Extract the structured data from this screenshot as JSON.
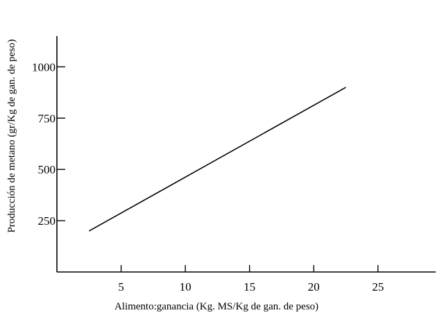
{
  "chart_data": {
    "type": "line",
    "title": "",
    "xlabel": "Alimento:ganancia (Kg. MS/Kg de gan. de peso)",
    "ylabel": "Producción de metano (gr/Kg de gan. de peso)",
    "xlim": [
      0,
      29.5
    ],
    "ylim": [
      0,
      1150
    ],
    "x_ticks": [
      5,
      10,
      15,
      20,
      25
    ],
    "x_tick_labels": [
      "5",
      "10",
      "15",
      "20",
      "25"
    ],
    "y_ticks": [
      250,
      500,
      750,
      1000
    ],
    "y_tick_labels": [
      "250",
      "500",
      "750",
      "1000"
    ],
    "grid": false,
    "legend": "none",
    "series": [
      {
        "x": [
          2.5,
          22.5
        ],
        "y": [
          200,
          900
        ]
      }
    ]
  }
}
